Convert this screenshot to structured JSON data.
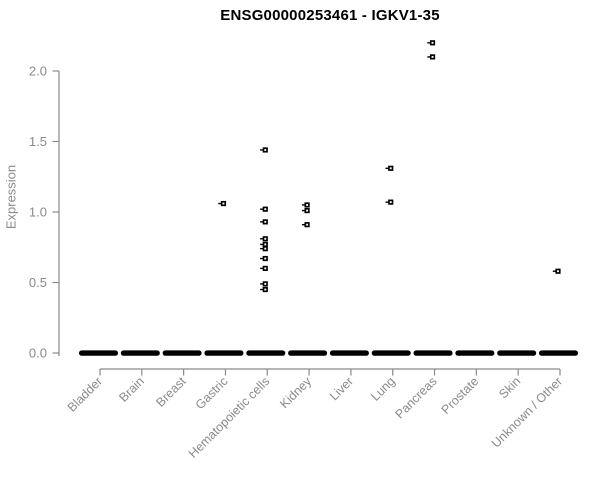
{
  "window": {
    "title": "ENSG00000253461 - IGKV1-35"
  },
  "colors": {
    "background": "#ffffff",
    "title_text": "#000000",
    "axis": "#8a8a8a",
    "axis_text": "#8a8a8a",
    "marker": "#000000",
    "marker_center": "#ffffff"
  },
  "chart_data": {
    "type": "scatter",
    "subtype": "strip-plot",
    "title": "ENSG00000253461 - IGKV1-35",
    "xlabel": "",
    "ylabel": "Expression",
    "ylim": [
      0.0,
      2.25
    ],
    "yticks": [
      "0.0",
      "0.5",
      "1.0",
      "1.5",
      "2.0"
    ],
    "grid": false,
    "legend": false,
    "marker": "open-square-with-left-whisker",
    "categories": [
      "Bladder",
      "Brain",
      "Breast",
      "Gastric",
      "Hematopoietic cells",
      "Kidney",
      "Liver",
      "Lung",
      "Pancreas",
      "Prostate",
      "Skin",
      "Unknown / Other"
    ],
    "series": [
      {
        "category": "Bladder",
        "zero_cluster": true,
        "nonzero_points": []
      },
      {
        "category": "Brain",
        "zero_cluster": true,
        "nonzero_points": []
      },
      {
        "category": "Breast",
        "zero_cluster": true,
        "nonzero_points": []
      },
      {
        "category": "Gastric",
        "zero_cluster": true,
        "nonzero_points": [
          1.06
        ]
      },
      {
        "category": "Hematopoietic cells",
        "zero_cluster": true,
        "nonzero_points": [
          1.44,
          1.02,
          0.93,
          0.81,
          0.77,
          0.74,
          0.67,
          0.6,
          0.49,
          0.45
        ]
      },
      {
        "category": "Kidney",
        "zero_cluster": true,
        "nonzero_points": [
          1.05,
          1.01,
          0.91
        ]
      },
      {
        "category": "Liver",
        "zero_cluster": true,
        "nonzero_points": []
      },
      {
        "category": "Lung",
        "zero_cluster": true,
        "nonzero_points": [
          1.31,
          1.07
        ]
      },
      {
        "category": "Pancreas",
        "zero_cluster": true,
        "nonzero_points": [
          2.2,
          2.1
        ]
      },
      {
        "category": "Prostate",
        "zero_cluster": true,
        "nonzero_points": []
      },
      {
        "category": "Skin",
        "zero_cluster": true,
        "nonzero_points": []
      },
      {
        "category": "Unknown / Other",
        "zero_cluster": true,
        "nonzero_points": [
          0.58
        ]
      }
    ]
  }
}
